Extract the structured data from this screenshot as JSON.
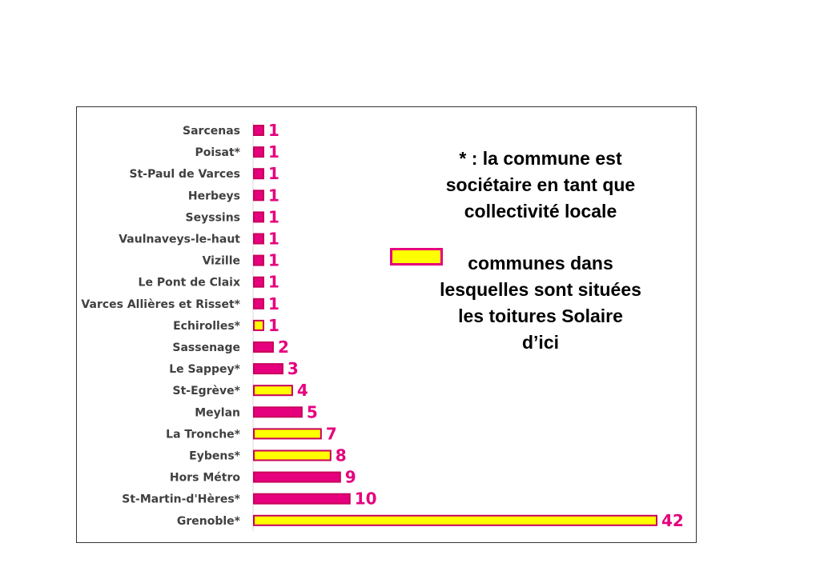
{
  "chart_data": {
    "type": "bar",
    "orientation": "horizontal",
    "categories": [
      "Sarcenas",
      "Poisat*",
      "St-Paul de Varces",
      "Herbeys",
      "Seyssins",
      "Vaulnaveys-le-haut",
      "Vizille",
      "Le Pont de Claix",
      "Varces Allières et Risset*",
      "Echirolles*",
      "Sassenage",
      "Le Sappey*",
      "St-Egrève*",
      "Meylan",
      "La Tronche*",
      "Eybens*",
      "Hors Métro",
      "St-Martin-d'Hères*",
      "Grenoble*"
    ],
    "values": [
      1,
      1,
      1,
      1,
      1,
      1,
      1,
      1,
      1,
      1,
      2,
      3,
      4,
      5,
      7,
      8,
      9,
      10,
      42
    ],
    "highlighted": [
      false,
      false,
      false,
      false,
      false,
      false,
      false,
      false,
      false,
      true,
      false,
      false,
      true,
      false,
      true,
      true,
      false,
      false,
      true
    ],
    "colors": {
      "default": "#e6007e",
      "highlighted": "#ffff00",
      "border": "#c8005a",
      "label": "#e6007e"
    },
    "xlim": [
      0,
      42
    ],
    "grid": false,
    "legend": "right"
  },
  "annotations": {
    "asterisk_note": "* : la commune est\nsociétaire en tant que\ncollectivité locale",
    "legend_text": "communes dans\nlesquelles sont situées\nles toitures Solaire\nd’ici"
  }
}
